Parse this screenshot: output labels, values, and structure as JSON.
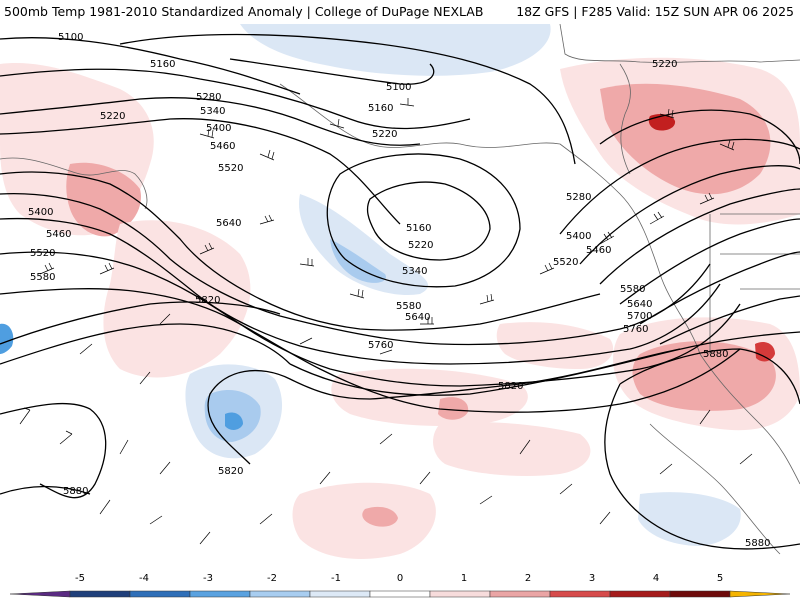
{
  "header": {
    "title": "500mb Temp 1981-2010 Standardized Anomaly | College of DuPage NEXLAB",
    "run_info": "18Z GFS | F285 Valid: 15Z SUN APR 06 2025"
  },
  "contour_labels": [
    {
      "text": "5100"
    },
    {
      "text": "5160"
    },
    {
      "text": "5100"
    },
    {
      "text": "5160"
    },
    {
      "text": "5220"
    },
    {
      "text": "5220"
    },
    {
      "text": "5280"
    },
    {
      "text": "5340"
    },
    {
      "text": "5400"
    },
    {
      "text": "5460"
    },
    {
      "text": "5520"
    },
    {
      "text": "5400"
    },
    {
      "text": "5460"
    },
    {
      "text": "5520"
    },
    {
      "text": "5580"
    },
    {
      "text": "5640"
    },
    {
      "text": "5160"
    },
    {
      "text": "5220"
    },
    {
      "text": "5340"
    },
    {
      "text": "5280"
    },
    {
      "text": "5400"
    },
    {
      "text": "5460"
    },
    {
      "text": "5520"
    },
    {
      "text": "5580"
    },
    {
      "text": "5640"
    },
    {
      "text": "5700"
    },
    {
      "text": "5760"
    },
    {
      "text": "5580"
    },
    {
      "text": "5640"
    },
    {
      "text": "5820"
    },
    {
      "text": "5760"
    },
    {
      "text": "5880"
    },
    {
      "text": "5820"
    },
    {
      "text": "5820"
    },
    {
      "text": "5880"
    },
    {
      "text": "5880"
    },
    {
      "text": "5220"
    }
  ],
  "colorbar": {
    "ticks": [
      "-5",
      "-4",
      "-3",
      "-2",
      "-1",
      "0",
      "1",
      "2",
      "3",
      "4",
      "5"
    ],
    "colors": [
      "#5a2a82",
      "#1f3f7a",
      "#2f6fb8",
      "#5aa2e0",
      "#a8cdf0",
      "#dde9f6",
      "#ffffff",
      "#f7dcdc",
      "#eaa5a5",
      "#d64b4b",
      "#a51c1c",
      "#6e0b0b",
      "#f5b400"
    ]
  },
  "colors": {
    "cold_light": "#dbe7f5",
    "cold_mid": "#a9cbee",
    "cold_dark": "#4f9ee0",
    "warm_light": "#fbe3e3",
    "warm_mid": "#efa9a9",
    "warm_dark": "#d43a3a",
    "contour": "#000000"
  }
}
